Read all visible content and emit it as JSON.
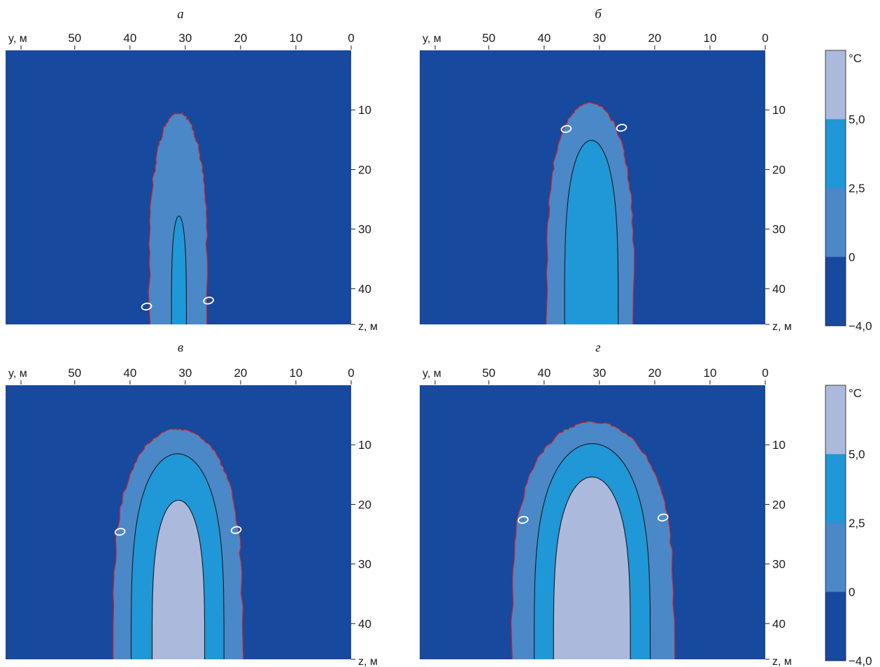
{
  "chart_data": [
    {
      "type": "heatmap",
      "panel": "а",
      "xlabel": "y, м",
      "ylabel": "z, м",
      "x_ticks": [
        50,
        40,
        30,
        20,
        10,
        0
      ],
      "y_ticks": [
        10,
        20,
        30,
        40
      ],
      "xlim": [
        62.5,
        0
      ],
      "ylim": [
        0,
        46
      ],
      "zones": [
        {
          "band": "0",
          "left_y": 36.5,
          "right_y": 26.0,
          "top_z": 10.5
        },
        {
          "band": "2,5",
          "left_y": 32.5,
          "right_y": 29.8,
          "top_z": 27.8
        }
      ],
      "zero_markers": [
        {
          "label": "0",
          "y": 37.0,
          "z": 43.0
        },
        {
          "label": "0",
          "y": 25.8,
          "z": 42.0
        }
      ]
    },
    {
      "type": "heatmap",
      "panel": "б",
      "xlabel": "y, м",
      "ylabel": "z, м",
      "x_ticks": [
        50,
        40,
        30,
        20,
        10,
        0
      ],
      "y_ticks": [
        10,
        20,
        30,
        40
      ],
      "xlim": [
        62.5,
        0
      ],
      "ylim": [
        0,
        46
      ],
      "zones": [
        {
          "band": "0",
          "left_y": 39.5,
          "right_y": 23.8,
          "top_z": 8.8
        },
        {
          "band": "2,5",
          "left_y": 36.3,
          "right_y": 26.6,
          "top_z": 15.1
        }
      ],
      "zero_markers": [
        {
          "label": "0",
          "y": 36.0,
          "z": 13.2
        },
        {
          "label": "0",
          "y": 26.0,
          "z": 13.0
        }
      ]
    },
    {
      "type": "heatmap",
      "panel": "в",
      "xlabel": "y, м",
      "ylabel": "z, м",
      "x_ticks": [
        50,
        40,
        30,
        20,
        10,
        0
      ],
      "y_ticks": [
        10,
        20,
        30,
        40
      ],
      "xlim": [
        62.5,
        0
      ],
      "ylim": [
        0,
        46
      ],
      "zones": [
        {
          "band": "0",
          "left_y": 43.0,
          "right_y": 19.7,
          "top_z": 7.4
        },
        {
          "band": "2,5",
          "left_y": 39.8,
          "right_y": 23.0,
          "top_z": 11.5
        },
        {
          "band": "5,0",
          "left_y": 36.0,
          "right_y": 26.5,
          "top_z": 19.3
        }
      ],
      "zero_markers": [
        {
          "label": "0",
          "y": 41.8,
          "z": 24.6
        },
        {
          "label": "0",
          "y": 20.8,
          "z": 24.3
        }
      ]
    },
    {
      "type": "heatmap",
      "panel": "г",
      "xlabel": "y, м",
      "ylabel": "z, м",
      "x_ticks": [
        50,
        40,
        30,
        20,
        10,
        0
      ],
      "y_ticks": [
        10,
        20,
        30,
        40
      ],
      "xlim": [
        62.5,
        0
      ],
      "ylim": [
        0,
        46
      ],
      "zones": [
        {
          "band": "0",
          "left_y": 45.8,
          "right_y": 16.5,
          "top_z": 6.2
        },
        {
          "band": "2,5",
          "left_y": 41.8,
          "right_y": 20.8,
          "top_z": 9.8
        },
        {
          "band": "5,0",
          "left_y": 38.3,
          "right_y": 24.4,
          "top_z": 15.4
        }
      ],
      "zero_markers": [
        {
          "label": "0",
          "y": 43.8,
          "z": 22.6
        },
        {
          "label": "0",
          "y": 18.5,
          "z": 22.2
        }
      ]
    }
  ],
  "colorbar": {
    "unit": "°C",
    "tick_labels": [
      "5,0",
      "2,5",
      "0",
      "−4,0"
    ],
    "colors": {
      "below_0": "#17499e",
      "0_to_2.5": "#4a88c8",
      "2.5_to_5": "#2097d6",
      "above_5": "#abbadc"
    },
    "boundary_color": "#d62020",
    "isoline_color": "#1a1a1a",
    "marker_color": "#ffffff"
  }
}
